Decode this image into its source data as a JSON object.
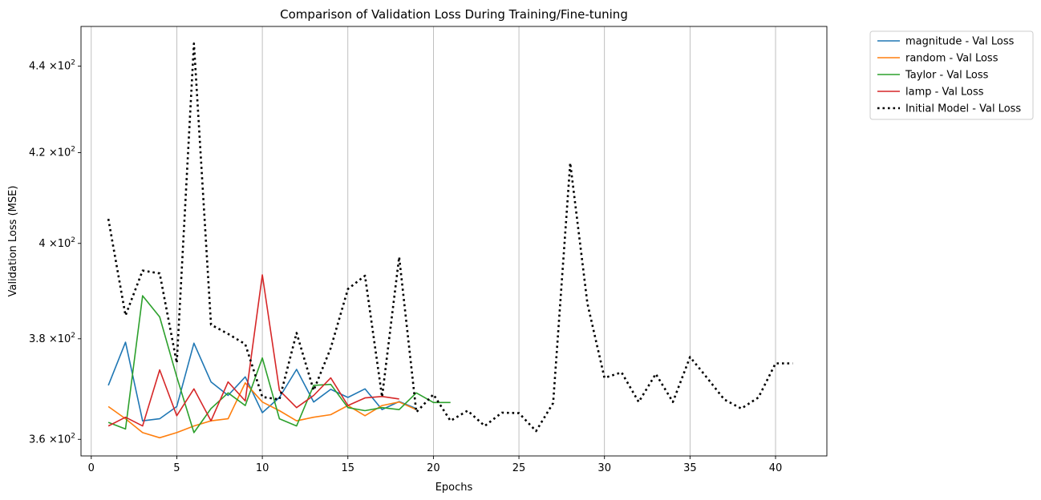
{
  "chart_data": {
    "type": "line",
    "title": "Comparison of Validation Loss During Training/Fine-tuning",
    "xlabel": "Epochs",
    "ylabel": "Validation Loss (MSE)",
    "y_scale": "log",
    "xlim": [
      -0.6,
      43.0
    ],
    "ylim": [
      356.8,
      449.5
    ],
    "grid": "x-axis vertical lines only",
    "legend_position": "outside upper right",
    "x_ticks": [
      0,
      5,
      10,
      15,
      20,
      25,
      30,
      35,
      40
    ],
    "x_tick_labels": [
      "0",
      "5",
      "10",
      "15",
      "20",
      "25",
      "30",
      "35",
      "40"
    ],
    "y_ticks": [
      {
        "value": 360,
        "base": "3.6",
        "exp": "2"
      },
      {
        "value": 380,
        "base": "3.8",
        "exp": "2"
      },
      {
        "value": 400,
        "base": "4",
        "exp": "2"
      },
      {
        "value": 420,
        "base": "4.2",
        "exp": "2"
      },
      {
        "value": 440,
        "base": "4.4",
        "exp": "2"
      }
    ],
    "y_tick_mult": "×10",
    "series": [
      {
        "name": "magnitude - Val Loss",
        "color": "#1f77b4",
        "style": "solid",
        "x": [
          1,
          2,
          3,
          4,
          5,
          6,
          7,
          8,
          9,
          10,
          11,
          12,
          13,
          14,
          15,
          16,
          17,
          18,
          19
        ],
        "values": [
          370.6,
          379.3,
          363.6,
          364.0,
          366.4,
          379.1,
          371.3,
          368.6,
          372.3,
          365.2,
          368.2,
          373.8,
          367.3,
          369.8,
          368.2,
          369.9,
          365.8,
          367.4,
          366.0
        ]
      },
      {
        "name": "random - Val Loss",
        "color": "#ff7f0e",
        "style": "solid",
        "x": [
          1,
          2,
          3,
          4,
          5,
          6,
          7,
          8,
          9,
          10,
          11,
          12,
          13,
          14,
          15,
          16,
          17,
          18,
          19
        ],
        "values": [
          366.4,
          364.0,
          361.3,
          360.3,
          361.3,
          362.6,
          363.6,
          364.0,
          371.1,
          367.3,
          365.6,
          363.6,
          364.3,
          364.8,
          366.6,
          364.6,
          366.6,
          367.3,
          365.8
        ]
      },
      {
        "name": "Taylor - Val Loss",
        "color": "#2ca02c",
        "style": "solid",
        "x": [
          1,
          2,
          3,
          4,
          5,
          6,
          7,
          8,
          9,
          10,
          11,
          12,
          13,
          14,
          15,
          16,
          17,
          18,
          19,
          20,
          21
        ],
        "values": [
          363.3,
          362.0,
          388.9,
          384.5,
          372.3,
          361.3,
          366.0,
          369.1,
          366.6,
          376.1,
          364.0,
          362.6,
          370.6,
          370.8,
          366.2,
          365.6,
          366.2,
          365.8,
          369.1,
          367.2,
          367.2
        ]
      },
      {
        "name": "lamp - Val Loss",
        "color": "#d62728",
        "style": "solid",
        "x": [
          1,
          2,
          3,
          4,
          5,
          6,
          7,
          8,
          9,
          10,
          11,
          12,
          13,
          14,
          15,
          16,
          17,
          18
        ],
        "values": [
          362.6,
          364.3,
          362.6,
          373.7,
          364.6,
          369.9,
          363.6,
          371.3,
          367.5,
          393.3,
          369.6,
          366.2,
          368.6,
          372.1,
          366.6,
          368.1,
          368.4,
          367.9
        ]
      },
      {
        "name": "Initial Model - Val Loss",
        "color": "#000000",
        "style": "dotted",
        "x": [
          1,
          2,
          3,
          4,
          5,
          6,
          7,
          8,
          9,
          10,
          11,
          12,
          13,
          14,
          15,
          16,
          17,
          18,
          19,
          20,
          21,
          22,
          23,
          24,
          25,
          26,
          27,
          28,
          29,
          30,
          31,
          32,
          33,
          34,
          35,
          36,
          37,
          38,
          39,
          40,
          41
        ],
        "values": [
          405.3,
          384.8,
          394.2,
          393.6,
          375.1,
          445.4,
          382.9,
          381.0,
          378.9,
          368.3,
          367.8,
          381.2,
          369.6,
          378.1,
          390.3,
          393.1,
          368.3,
          397.1,
          365.3,
          368.8,
          363.6,
          365.6,
          362.6,
          365.2,
          365.1,
          361.6,
          367.1,
          417.7,
          387.3,
          372.1,
          373.2,
          367.3,
          372.9,
          367.3,
          376.3,
          372.1,
          367.8,
          366.0,
          368.2,
          375.0,
          375.0
        ]
      }
    ]
  }
}
